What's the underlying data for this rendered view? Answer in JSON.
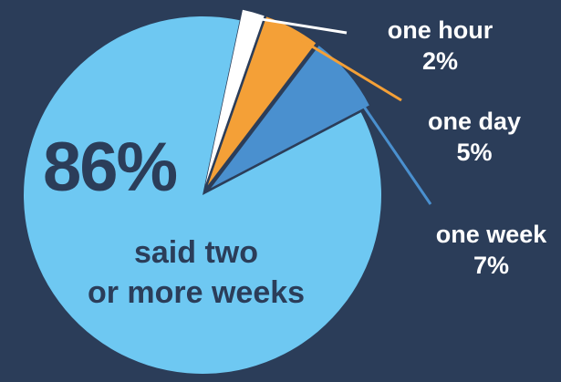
{
  "chart_data": {
    "type": "pie",
    "slices": [
      {
        "label": "said two or more weeks",
        "value": 86,
        "color": "#6ec8f2"
      },
      {
        "label": "one hour",
        "value": 2,
        "color": "#ffffff"
      },
      {
        "label": "one day",
        "value": 5,
        "color": "#f4a037"
      },
      {
        "label": "one week",
        "value": 7,
        "color": "#4a90cf"
      }
    ],
    "exploded": [
      "one hour",
      "one day",
      "one week"
    ]
  },
  "labels": {
    "big_pct": "86%",
    "main_line1": "said two",
    "main_line2": "or more weeks",
    "hour_name": "one hour",
    "hour_pct": "2%",
    "day_name": "one day",
    "day_pct": "5%",
    "week_name": "one week",
    "week_pct": "7%"
  },
  "colors": {
    "background": "#2b3d59",
    "text_dark": "#2b3d59",
    "text_light": "#ffffff"
  }
}
